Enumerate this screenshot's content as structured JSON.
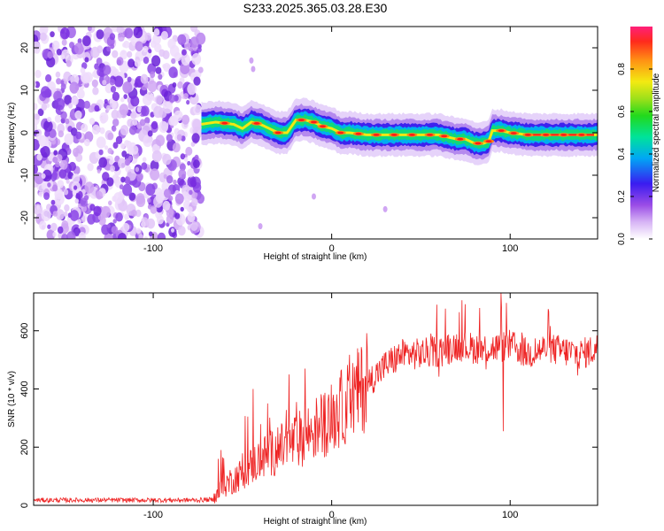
{
  "title": "S233.2025.365.03.28.E30",
  "chart_data": [
    {
      "type": "heatmap",
      "xlabel": "Height of straight line (km)",
      "ylabel": "Frequency (Hz)",
      "xlim": [
        -167,
        149
      ],
      "ylim": [
        -25,
        25
      ],
      "xticks": [
        -100,
        0,
        100
      ],
      "yticks": [
        -20,
        -10,
        0,
        10,
        20
      ],
      "colorbar": {
        "label": "Normalized spectral amplitude",
        "range": [
          0,
          1
        ],
        "ticks": [
          0.0,
          0.2,
          0.4,
          0.6,
          0.8
        ]
      },
      "noise_region": {
        "x_from": -167,
        "x_to": -73
      },
      "signal_line": {
        "x": [
          -73,
          -65,
          -55,
          -50,
          -45,
          -40,
          -35,
          -30,
          -25,
          -20,
          -15,
          -10,
          -5,
          0,
          5,
          10,
          20,
          30,
          40,
          50,
          60,
          70,
          75,
          80,
          85,
          88,
          90,
          95,
          100,
          110,
          120,
          130,
          140,
          149
        ],
        "freq": [
          2,
          2.5,
          2,
          1,
          2.5,
          2,
          1,
          0,
          0,
          3,
          3,
          2.5,
          1.5,
          1,
          0,
          0,
          -0.5,
          -0.5,
          -0.5,
          -0.5,
          -0.5,
          -1.5,
          -1.5,
          -2.5,
          -2.5,
          -2,
          0.5,
          0.5,
          0,
          -0.5,
          -0.5,
          -0.5,
          -0.5,
          -0.5
        ]
      },
      "hotspots_x": [
        -60,
        -42,
        -30,
        -17,
        -10,
        -5,
        5,
        15,
        25,
        35,
        45,
        55,
        63,
        72,
        82,
        88,
        95,
        102,
        110,
        120,
        130,
        140
      ]
    },
    {
      "type": "line",
      "xlabel": "Height of straight line (km)",
      "ylabel": "SNR (10 * v/v)",
      "xlim": [
        -167,
        149
      ],
      "ylim": [
        0,
        730
      ],
      "xticks": [
        -100,
        0,
        100
      ],
      "yticks": [
        0,
        200,
        400,
        600
      ],
      "color": "#ee2222",
      "series": [
        {
          "name": "SNR",
          "x": [
            -167,
            -75,
            -66,
            -60,
            -50,
            -40,
            -30,
            -20,
            -10,
            0,
            10,
            20,
            30,
            40,
            50,
            60,
            70,
            80,
            90,
            100,
            110,
            120,
            130,
            140,
            149
          ],
          "values": [
            18,
            18,
            20,
            70,
            110,
            160,
            190,
            220,
            260,
            300,
            360,
            420,
            480,
            520,
            520,
            530,
            550,
            540,
            540,
            550,
            520,
            540,
            530,
            520,
            540
          ]
        }
      ],
      "spikes": [
        {
          "x": -62,
          "value": 190
        },
        {
          "x": -44,
          "value": 400
        },
        {
          "x": -36,
          "value": 350
        },
        {
          "x": -24,
          "value": 450
        },
        {
          "x": -15,
          "value": 470
        },
        {
          "x": 59,
          "value": 690
        },
        {
          "x": 73,
          "value": 705
        },
        {
          "x": 95,
          "value": 730
        },
        {
          "x": 96,
          "value": 255
        }
      ]
    }
  ]
}
